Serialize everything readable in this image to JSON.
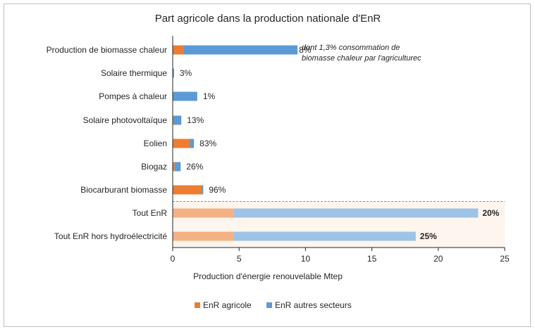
{
  "chart_data": {
    "type": "bar",
    "orientation": "horizontal",
    "stacked": true,
    "title": "Part agricole dans la production nationale d'EnR",
    "xlabel": "Production d'énergie renouvelable Mtep",
    "ylabel": "",
    "xlim": [
      0,
      25
    ],
    "xticks": [
      "0",
      "5",
      "10",
      "15",
      "20",
      "25"
    ],
    "grid": false,
    "legend_position": "bottom",
    "categories": [
      "Production de biomasse chaleur",
      "Solaire thermique",
      "Pompes à chaleur",
      "Solaire photovoltaïque",
      "Eolien",
      "Biogaz",
      "Biocarburant biomasse",
      "Tout EnR",
      "Tout EnR hors hydroélectricité"
    ],
    "series": [
      {
        "name": "EnR agricole",
        "color": "#ed7d31",
        "light_color": "#f4b183",
        "values": [
          0.8,
          0.0,
          0.0,
          0.08,
          1.3,
          0.15,
          2.2,
          4.6,
          4.6
        ]
      },
      {
        "name": "EnR autres secteurs",
        "color": "#5b9bd5",
        "light_color": "#9dc3e6",
        "values": [
          8.6,
          0.1,
          1.85,
          0.57,
          0.3,
          0.45,
          0.1,
          18.4,
          13.7
        ]
      }
    ],
    "data_labels": [
      "8%",
      "3%",
      "1%",
      "13%",
      "83%",
      "26%",
      "96%",
      "20%",
      "25%"
    ],
    "annotation": {
      "line1": "dont 1,3% consommation de",
      "line2": "biomasse chaleur par l'agriculturec"
    },
    "highlight_band": {
      "categories": [
        "Tout EnR",
        "Tout EnR hors hydroélectricité"
      ],
      "color": "#fdf5ee"
    }
  }
}
